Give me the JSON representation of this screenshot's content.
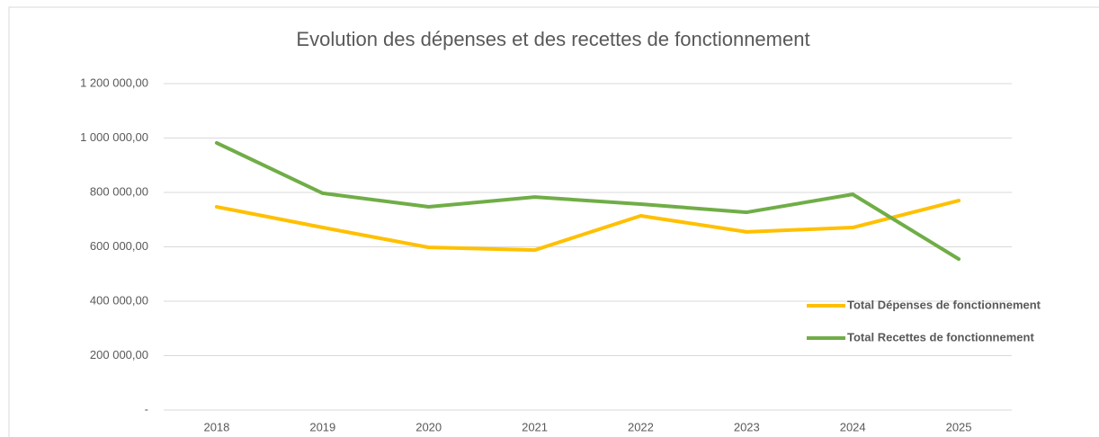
{
  "chart_data": {
    "type": "line",
    "title": "Evolution des dépenses et des recettes de fonctionnement",
    "categories": [
      "2018",
      "2019",
      "2020",
      "2021",
      "2022",
      "2023",
      "2024",
      "2025"
    ],
    "series": [
      {
        "name": "Total Dépenses de fonctionnement",
        "color": "#ffc000",
        "values": [
          747000,
          671000,
          598000,
          588000,
          714000,
          655000,
          671000,
          770000
        ]
      },
      {
        "name": "Total Recettes de fonctionnement",
        "color": "#70ad47",
        "values": [
          982000,
          797000,
          747000,
          783000,
          757000,
          727000,
          793000,
          555000
        ]
      }
    ],
    "ylim": [
      0,
      1200000
    ],
    "yticks": [
      {
        "value": 0,
        "label": "-"
      },
      {
        "value": 200000,
        "label": "200 000,00"
      },
      {
        "value": 400000,
        "label": "400 000,00"
      },
      {
        "value": 600000,
        "label": "600 000,00"
      },
      {
        "value": 800000,
        "label": "800 000,00"
      },
      {
        "value": 1000000,
        "label": "1 000 000,00"
      },
      {
        "value": 1200000,
        "label": "1 200 000,00"
      }
    ],
    "grid": true,
    "legend": "right"
  }
}
